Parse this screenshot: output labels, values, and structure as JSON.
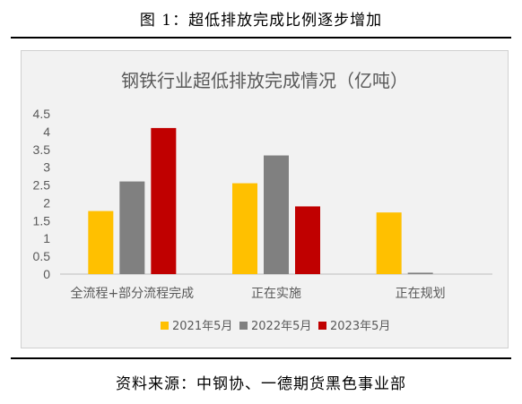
{
  "figure_title": "图 1：超低排放完成比例逐步增加",
  "source": "资料来源：中钢协、一德期货黑色事业部",
  "chart_data": {
    "type": "bar",
    "title": "钢铁行业超低排放完成情况（亿吨）",
    "categories": [
      "全流程+部分流程完成",
      "正在实施",
      "正在规划"
    ],
    "series": [
      {
        "name": "2021年5月",
        "values": [
          1.77,
          2.55,
          1.73
        ],
        "color": "#FFC000"
      },
      {
        "name": "2022年5月",
        "values": [
          2.6,
          3.33,
          0.04
        ],
        "color": "#808080"
      },
      {
        "name": "2023年5月",
        "values": [
          4.1,
          1.9,
          0
        ],
        "color": "#C00000"
      }
    ],
    "yticks": [
      "0",
      "0.5",
      "1",
      "1.5",
      "2",
      "2.5",
      "3",
      "3.5",
      "4",
      "4.5"
    ],
    "ylim": [
      0,
      4.5
    ],
    "grid": false,
    "legend": "bottom"
  }
}
